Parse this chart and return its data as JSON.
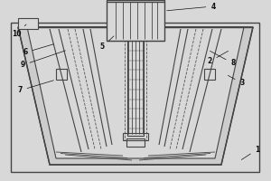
{
  "bg_color": "#d8d8d8",
  "line_color": "#444444",
  "dashed_color": "#555555",
  "label_color": "#111111",
  "fig_bg": "#d8d8d8",
  "white": "#ffffff",
  "lw_main": 0.8,
  "lw_thin": 0.6,
  "lw_thick": 1.0,
  "label_fs": 5.5
}
